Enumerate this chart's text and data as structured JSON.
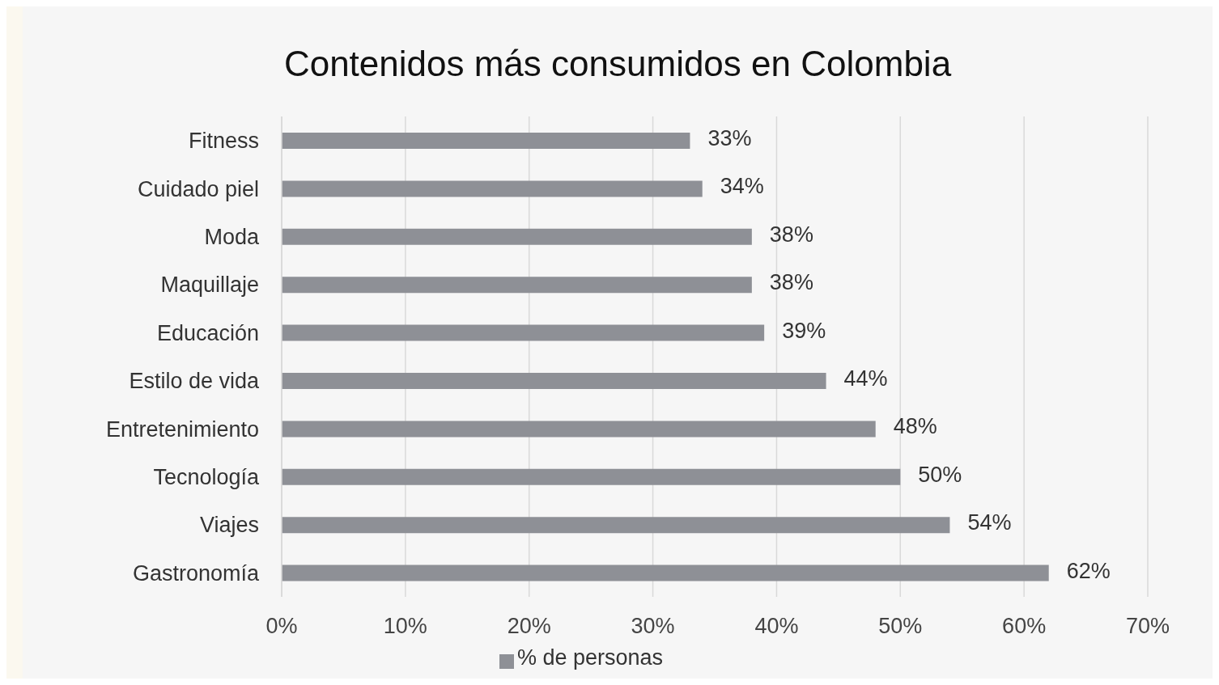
{
  "chart_data": {
    "type": "bar",
    "orientation": "horizontal",
    "title": "Contenidos más consumidos en Colombia",
    "categories": [
      "Fitness",
      "Cuidado piel",
      "Moda",
      "Maquillaje",
      "Educación",
      "Estilo de vida",
      "Entretenimiento",
      "Tecnología",
      "Viajes",
      "Gastronomía"
    ],
    "series": [
      {
        "name": "% de personas",
        "color": "#8e9096",
        "values": [
          33,
          34,
          38,
          38,
          39,
          44,
          48,
          50,
          54,
          62
        ],
        "value_labels": [
          "33%",
          "34%",
          "38%",
          "38%",
          "39%",
          "44%",
          "48%",
          "50%",
          "54%",
          "62%"
        ]
      }
    ],
    "xlim": [
      0,
      70
    ],
    "xticks": [
      {
        "value": 0,
        "label": "0%"
      },
      {
        "value": 10,
        "label": "10%"
      },
      {
        "value": 20,
        "label": "20%"
      },
      {
        "value": 30,
        "label": "30%"
      },
      {
        "value": 40,
        "label": "40%"
      },
      {
        "value": 50,
        "label": "50%"
      },
      {
        "value": 60,
        "label": "60%"
      },
      {
        "value": 70,
        "label": "70%"
      }
    ],
    "grid": "x",
    "legend": "bottom"
  }
}
